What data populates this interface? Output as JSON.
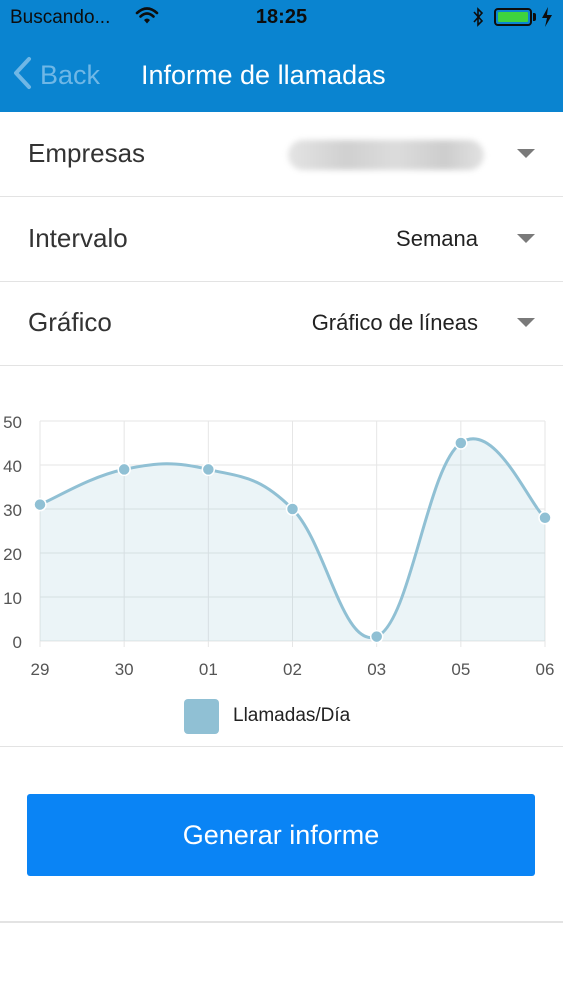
{
  "status_bar": {
    "carrier": "Buscando...",
    "time": "18:25",
    "battery_color": "#3ed33e"
  },
  "nav": {
    "back_label": "Back",
    "title": "Informe de llamadas",
    "bar_color": "#0a84d0"
  },
  "filters": {
    "empresas": {
      "label": "Empresas",
      "value": ""
    },
    "intervalo": {
      "label": "Intervalo",
      "value": "Semana"
    },
    "grafico": {
      "label": "Gráfico",
      "value": "Gráfico de líneas"
    }
  },
  "chart_data": {
    "type": "line",
    "categories": [
      "29",
      "30",
      "01",
      "02",
      "03",
      "05",
      "06"
    ],
    "series": [
      {
        "name": "Llamadas/Día",
        "values": [
          31,
          39,
          39,
          30,
          1,
          45,
          28
        ],
        "color": "#90c0d4"
      }
    ],
    "ylim": [
      0,
      50
    ],
    "yticks": [
      0,
      10,
      20,
      30,
      40,
      50
    ],
    "grid": true,
    "smooth": true,
    "filled": true,
    "legend": "bottom"
  },
  "actions": {
    "generate_label": "Generar informe",
    "button_color": "#0a84f5"
  }
}
